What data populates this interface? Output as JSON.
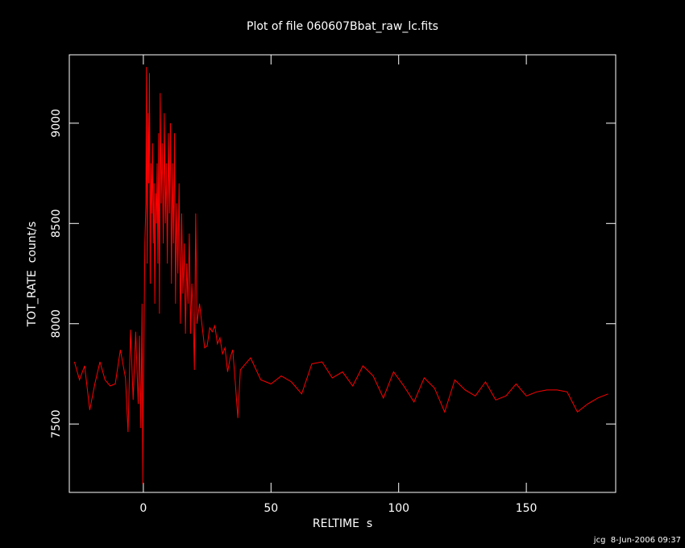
{
  "chart_data": {
    "type": "line",
    "title": "Plot of file 060607Bbat_raw_lc.fits",
    "x_label": "RELTIME  s",
    "y_label": "TOT_RATE  count/s",
    "footer": "jcg  8-Jun-2006 09:37",
    "color": "#ff0000",
    "xlim": [
      -29,
      185
    ],
    "ylim": [
      7159,
      9341
    ],
    "xticks": [
      0,
      50,
      100,
      150
    ],
    "yticks": [
      7500,
      8000,
      8500,
      9000
    ],
    "x": [
      -27,
      -25,
      -23,
      -21,
      -19,
      -17,
      -15,
      -13,
      -11,
      -9,
      -7,
      -6,
      -5,
      -4,
      -3,
      -2,
      -1.5,
      -1,
      -0.5,
      -0.2,
      0,
      0.3,
      0.6,
      1,
      1.2,
      1.5,
      1.8,
      2.1,
      2.4,
      2.7,
      3,
      3.3,
      3.6,
      3.9,
      4.2,
      4.5,
      4.8,
      5.1,
      5.4,
      5.7,
      6,
      6.3,
      6.6,
      7,
      7.4,
      7.8,
      8.2,
      8.6,
      9,
      9.4,
      9.8,
      10.2,
      10.6,
      11,
      11.4,
      11.8,
      12.2,
      12.6,
      13,
      13.5,
      14,
      14.5,
      15,
      15.5,
      16,
      16.5,
      17,
      17.5,
      18,
      18.5,
      19,
      19.5,
      20,
      20.5,
      21,
      22,
      23,
      24,
      25,
      26,
      27,
      28,
      29,
      30,
      31,
      32,
      33,
      34,
      35,
      36,
      37,
      38,
      42,
      46,
      50,
      54,
      58,
      62,
      66,
      70,
      74,
      78,
      82,
      86,
      90,
      94,
      98,
      102,
      106,
      110,
      114,
      118,
      122,
      126,
      130,
      134,
      138,
      142,
      146,
      150,
      154,
      158,
      162,
      166,
      170,
      174,
      178,
      182
    ],
    "values": [
      7810,
      7720,
      7790,
      7570,
      7700,
      7810,
      7720,
      7690,
      7700,
      7870,
      7730,
      7460,
      7970,
      7620,
      7960,
      7600,
      7940,
      7480,
      8100,
      7200,
      7700,
      8000,
      8400,
      8600,
      9280,
      8300,
      9050,
      8700,
      9250,
      8200,
      8800,
      8550,
      8900,
      8400,
      8700,
      8100,
      8650,
      8500,
      8800,
      8300,
      8950,
      8050,
      9150,
      8600,
      8900,
      8400,
      9050,
      8500,
      8800,
      8300,
      8950,
      8550,
      9000,
      8200,
      8800,
      8400,
      8950,
      8100,
      8600,
      8250,
      8700,
      8000,
      8550,
      8150,
      8400,
      7950,
      8300,
      8100,
      8450,
      7950,
      8200,
      8050,
      7770,
      8550,
      8000,
      8100,
      7990,
      7880,
      7890,
      7980,
      7960,
      7990,
      7900,
      7930,
      7850,
      7880,
      7760,
      7830,
      7870,
      7710,
      7530,
      7770,
      7830,
      7720,
      7700,
      7740,
      7710,
      7650,
      7800,
      7810,
      7730,
      7760,
      7690,
      7790,
      7740,
      7630,
      7760,
      7690,
      7610,
      7730,
      7680,
      7560,
      7720,
      7670,
      7640,
      7710,
      7620,
      7640,
      7700,
      7640,
      7660,
      7670,
      7670,
      7660,
      7560,
      7600,
      7630,
      7650
    ]
  }
}
